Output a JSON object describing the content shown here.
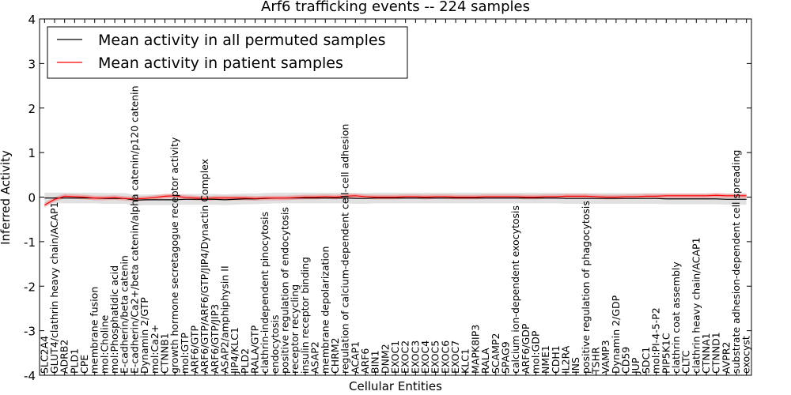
{
  "chart_data": {
    "type": "line",
    "title": "Arf6 trafficking events -- 224 samples",
    "xlabel": "Cellular Entities",
    "ylabel": "Inferred Activity",
    "ylim": [
      -4,
      4
    ],
    "yticks": [
      -4,
      -3,
      -2,
      -1,
      0,
      1,
      2,
      3,
      4
    ],
    "grid": false,
    "legend_position": "top-left",
    "categories": [
      "SLC2A4",
      "GLUT4/clathrin heavy chain/ACAP1",
      "ADRB2",
      "PLD1",
      "CPE",
      "membrane fusion",
      "mol:Choline",
      "mol:Phosphatidic acid",
      "E-cadherin/beta catenin",
      "E-cadherin/Ca2+/beta catenin/alpha catenin/p120 catenin",
      "Dynamin 2/GTP",
      "mol:Ca2+",
      "CTNNB1",
      "growth hormone secretagogue receptor activity",
      "mol:GTP",
      "ARF6/GTP",
      "ARF6/GTP/ARF6/GTP/JIP4/Dynactin Complex",
      "ARF6/GTP/JIP3",
      "ASAP2/amphiphysin II",
      "JIP4/KLC1",
      "PLD2",
      "RALA/GTP",
      "clathrin-independent pinocytosis",
      "endocytosis",
      "positive regulation of endocytosis",
      "receptor recycling",
      "insulin receptor binding",
      "ASAP2",
      "membrane depolarization",
      "CHRM2",
      "regulation of calcium-dependent cell-cell adhesion",
      "ACAP1",
      "ARF6",
      "BIN1",
      "DNM2",
      "EXOC1",
      "EXOC2",
      "EXOC3",
      "EXOC4",
      "EXOC5",
      "EXOC6",
      "EXOC7",
      "KLC1",
      "MAPK8IP3",
      "RALA",
      "SCAMP2",
      "SPAG9",
      "calcium ion-dependent exocytosis",
      "ARF6/GDP",
      "mol:GDP",
      "NME1",
      "CDH1",
      "IL2RA",
      "INS",
      "positive regulation of phagocytosis",
      "TSHR",
      "VAMP3",
      "Dynamin 2/GDP",
      "CD59",
      "JUP",
      "SDC1",
      "mol:PI-4-5-P2",
      "PIP5K1C",
      "clathrin coat assembly",
      "CLTC",
      "clathrin heavy chain/ACAP1",
      "CTNNA1",
      "CTNND1",
      "AVPR2",
      "substrate adhesion-dependent cell spreading",
      "exocyst"
    ],
    "series": [
      {
        "name": "Mean activity in all permuted samples",
        "color": "#000000",
        "values": [
          -0.02,
          -0.02,
          -0.02,
          -0.02,
          -0.02,
          -0.02,
          -0.03,
          -0.03,
          -0.03,
          -0.07,
          -0.06,
          -0.06,
          -0.06,
          -0.06,
          -0.05,
          -0.05,
          -0.05,
          -0.05,
          -0.06,
          -0.05,
          -0.04,
          -0.04,
          -0.03,
          -0.02,
          -0.02,
          -0.02,
          -0.02,
          -0.02,
          -0.02,
          -0.02,
          -0.02,
          -0.03,
          -0.03,
          -0.02,
          -0.02,
          -0.02,
          -0.02,
          -0.02,
          -0.02,
          -0.02,
          -0.02,
          -0.02,
          -0.02,
          -0.02,
          -0.02,
          -0.02,
          -0.02,
          -0.02,
          -0.02,
          -0.02,
          -0.02,
          -0.02,
          -0.03,
          -0.03,
          -0.03,
          -0.03,
          -0.03,
          -0.03,
          -0.03,
          -0.03,
          -0.03,
          -0.03,
          -0.04,
          -0.04,
          -0.04,
          -0.04,
          -0.04,
          -0.04,
          -0.05,
          -0.05,
          -0.05
        ],
        "band": 0.12,
        "band_color": "#aaaaaa"
      },
      {
        "name": "Mean activity in patient samples",
        "color": "#ff0000",
        "values": [
          -0.18,
          -0.05,
          0.02,
          0.01,
          0.0,
          -0.02,
          -0.02,
          -0.01,
          -0.03,
          -0.04,
          -0.03,
          -0.01,
          0.02,
          0.03,
          -0.01,
          -0.02,
          -0.03,
          -0.02,
          -0.02,
          -0.02,
          -0.02,
          -0.03,
          -0.02,
          -0.02,
          -0.02,
          -0.01,
          0.0,
          0.0,
          0.01,
          0.0,
          0.02,
          0.03,
          0.01,
          0.0,
          0.0,
          0.0,
          0.01,
          0.01,
          0.0,
          0.01,
          0.01,
          0.0,
          0.0,
          0.0,
          0.01,
          0.01,
          0.01,
          0.01,
          0.0,
          0.0,
          0.01,
          0.01,
          0.02,
          0.02,
          0.02,
          0.01,
          0.0,
          0.0,
          0.01,
          0.01,
          0.02,
          0.02,
          0.03,
          0.03,
          0.03,
          0.03,
          0.03,
          0.04,
          0.03,
          0.03,
          0.03
        ],
        "band": 0.05,
        "band_color": "#f08080"
      }
    ]
  }
}
